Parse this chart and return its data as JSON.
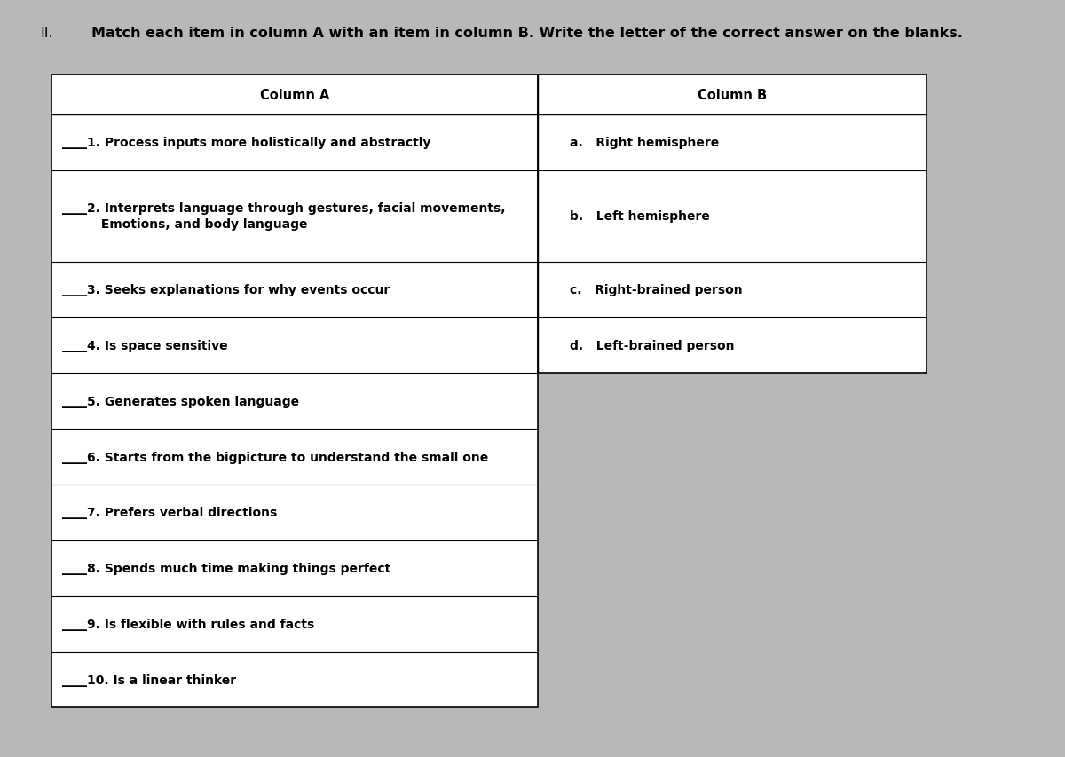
{
  "title_roman": "II.",
  "title_text": "Match each item in column A with an item in column B. Write the letter of the correct answer on the blanks.",
  "background_color": "#b8b8b8",
  "table_bg": "#ffffff",
  "col_a_header": "Column A",
  "col_b_header": "Column B",
  "col_a_items": [
    "____1. Process inputs more holistically and abstractly",
    "____2. Interprets language through gestures, facial movements,\n         Emotions, and body language",
    "____3. Seeks explanations for why events occur",
    "____4. Is space sensitive",
    "____5. Generates spoken language",
    "____6. Starts from the bigpicture to understand the small one",
    "____7. Prefers verbal directions",
    "____8. Spends much time making things perfect",
    "____9. Is flexible with rules and facts",
    "____10. Is a linear thinker"
  ],
  "col_b_items": [
    "a.   Right hemisphere",
    "b.   Left hemisphere",
    "c.   Right-brained person",
    "d.   Left-brained person"
  ],
  "header_fontsize": 10.5,
  "body_fontsize": 10.0,
  "title_fontsize": 11.5,
  "title_bold_fontsize": 11.5
}
